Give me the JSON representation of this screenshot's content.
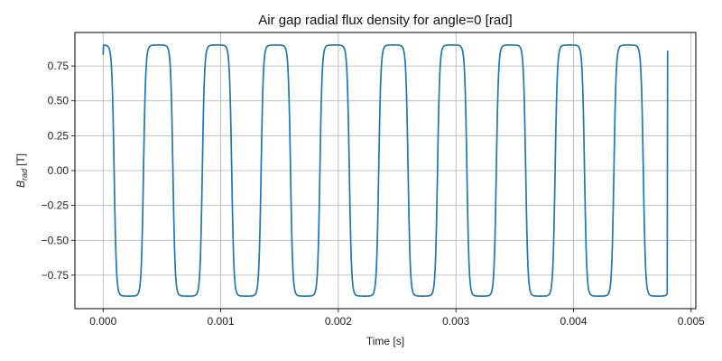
{
  "chart_data": {
    "type": "line",
    "title": "Air gap radial flux density for angle=0 [rad]",
    "xlabel": "Time [s]",
    "ylabel": {
      "base": "B",
      "subscript": "rad",
      "unit": "[T]"
    },
    "xlim": [
      -0.00024,
      0.00504
    ],
    "ylim": [
      -0.99,
      0.99
    ],
    "x_ticks": [
      0.0,
      0.001,
      0.002,
      0.003,
      0.004,
      0.005
    ],
    "x_tick_labels": [
      "0.000",
      "0.001",
      "0.002",
      "0.003",
      "0.004",
      "0.005"
    ],
    "y_ticks": [
      0.75,
      0.5,
      0.25,
      0.0,
      -0.25,
      -0.5,
      -0.75
    ],
    "y_tick_labels": [
      "0.75",
      "0.50",
      "0.25",
      "0.00",
      "−0.25",
      "−0.50",
      "−0.75"
    ],
    "grid": true,
    "series": [
      {
        "color": "#1f77b4",
        "waveform": {
          "amplitude": 0.9,
          "period": 0.0005,
          "start_value": 0.83,
          "end_value": 0.86,
          "x_start": 0.0,
          "x_end": 0.0048
        }
      }
    ]
  }
}
